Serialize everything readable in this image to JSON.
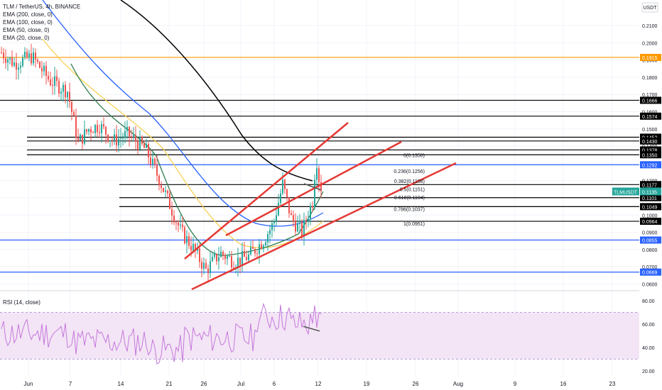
{
  "legend": {
    "symbol": "TLM / TetherUS, 4h, BINANCE",
    "ema_lines": [
      "EMA (200, close, 0)",
      "EMA (100, close, 0)",
      "EMA (50, close, 0)",
      "EMA (20, close, 0)"
    ]
  },
  "rsi_title": "RSI (14, close)",
  "colors": {
    "up": "#26a69a",
    "down": "#ef5350",
    "ema200": "#000000",
    "ema100": "#2962ff",
    "ema50": "#f7d154",
    "ema20": "#2e7d4f",
    "channel": "#e53935",
    "rsi": "#c678dd",
    "rsi_band": "#f3e5f5",
    "blue_level": "#2962ff",
    "orange_level": "#ff9800",
    "black_level": "#000000"
  },
  "chart_data": {
    "type": "candlestick",
    "price_axis": {
      "currency": "USDT",
      "ticks": [
        "0.2100",
        "0.2000",
        "0.1900",
        "0.1800",
        "0.1700",
        "0.1600",
        "0.1500",
        "0.1400",
        "0.1300",
        "0.1200",
        "0.1100",
        "0.1000",
        "0.0900",
        "0.0800",
        "0.0700",
        "0.0600"
      ],
      "ylim": [
        0.06,
        0.22
      ]
    },
    "time_axis": {
      "ticks": [
        "Jun",
        "7",
        "14",
        "21",
        "26",
        "Jul",
        "6",
        "12",
        "19",
        "26",
        "Aug",
        "9",
        "16",
        "23"
      ]
    },
    "current_price": {
      "label": "TLMUSDT",
      "value": "0.1135"
    },
    "horizontal_levels": [
      {
        "value": 0.1915,
        "label": "0.1915",
        "color": "orange"
      },
      {
        "value": 0.1666,
        "label": "0.1666",
        "color": "black"
      },
      {
        "value": 0.1574,
        "label": "0.1574",
        "color": "black"
      },
      {
        "value": 0.1452,
        "label": "0.1452",
        "color": "black"
      },
      {
        "value": 0.143,
        "label": "0.1430",
        "color": "black"
      },
      {
        "value": 0.1378,
        "label": "0.1378",
        "color": "black"
      },
      {
        "value": 0.135,
        "label": "0.1350",
        "color": "black"
      },
      {
        "value": 0.1292,
        "label": "0.1292",
        "color": "blue"
      },
      {
        "value": 0.1177,
        "label": "0.1177",
        "color": "black"
      },
      {
        "value": 0.1101,
        "label": "0.1101",
        "color": "black"
      },
      {
        "value": 0.1049,
        "label": "0.1049",
        "color": "black"
      },
      {
        "value": 0.0964,
        "label": "0.0964",
        "color": "black"
      },
      {
        "value": 0.0855,
        "label": "0.0855",
        "color": "blue"
      },
      {
        "value": 0.0669,
        "label": "0.0669",
        "color": "blue"
      }
    ],
    "fibonacci": [
      {
        "ratio": "0",
        "price": 0.135,
        "label": "0(0.1350)"
      },
      {
        "ratio": "0.236",
        "price": 0.1256,
        "label": "0.236(0.1256)"
      },
      {
        "ratio": "0.382",
        "price": 0.1198,
        "label": "0.382(0.1198)"
      },
      {
        "ratio": "0.5",
        "price": 0.1151,
        "label": "0.5(0.1151)"
      },
      {
        "ratio": "0.618",
        "price": 0.1104,
        "label": "0.618(0.1104)"
      },
      {
        "ratio": "0.786",
        "price": 0.1037,
        "label": "0.786(0.1037)"
      },
      {
        "ratio": "1",
        "price": 0.0951,
        "label": "1(0.0951)"
      }
    ],
    "rsi_axis": {
      "ticks": [
        "80.00",
        "60.00",
        "40.00",
        "20.00"
      ],
      "ylim": [
        15,
        85
      ]
    },
    "rsi_bands": [
      30,
      70
    ]
  }
}
